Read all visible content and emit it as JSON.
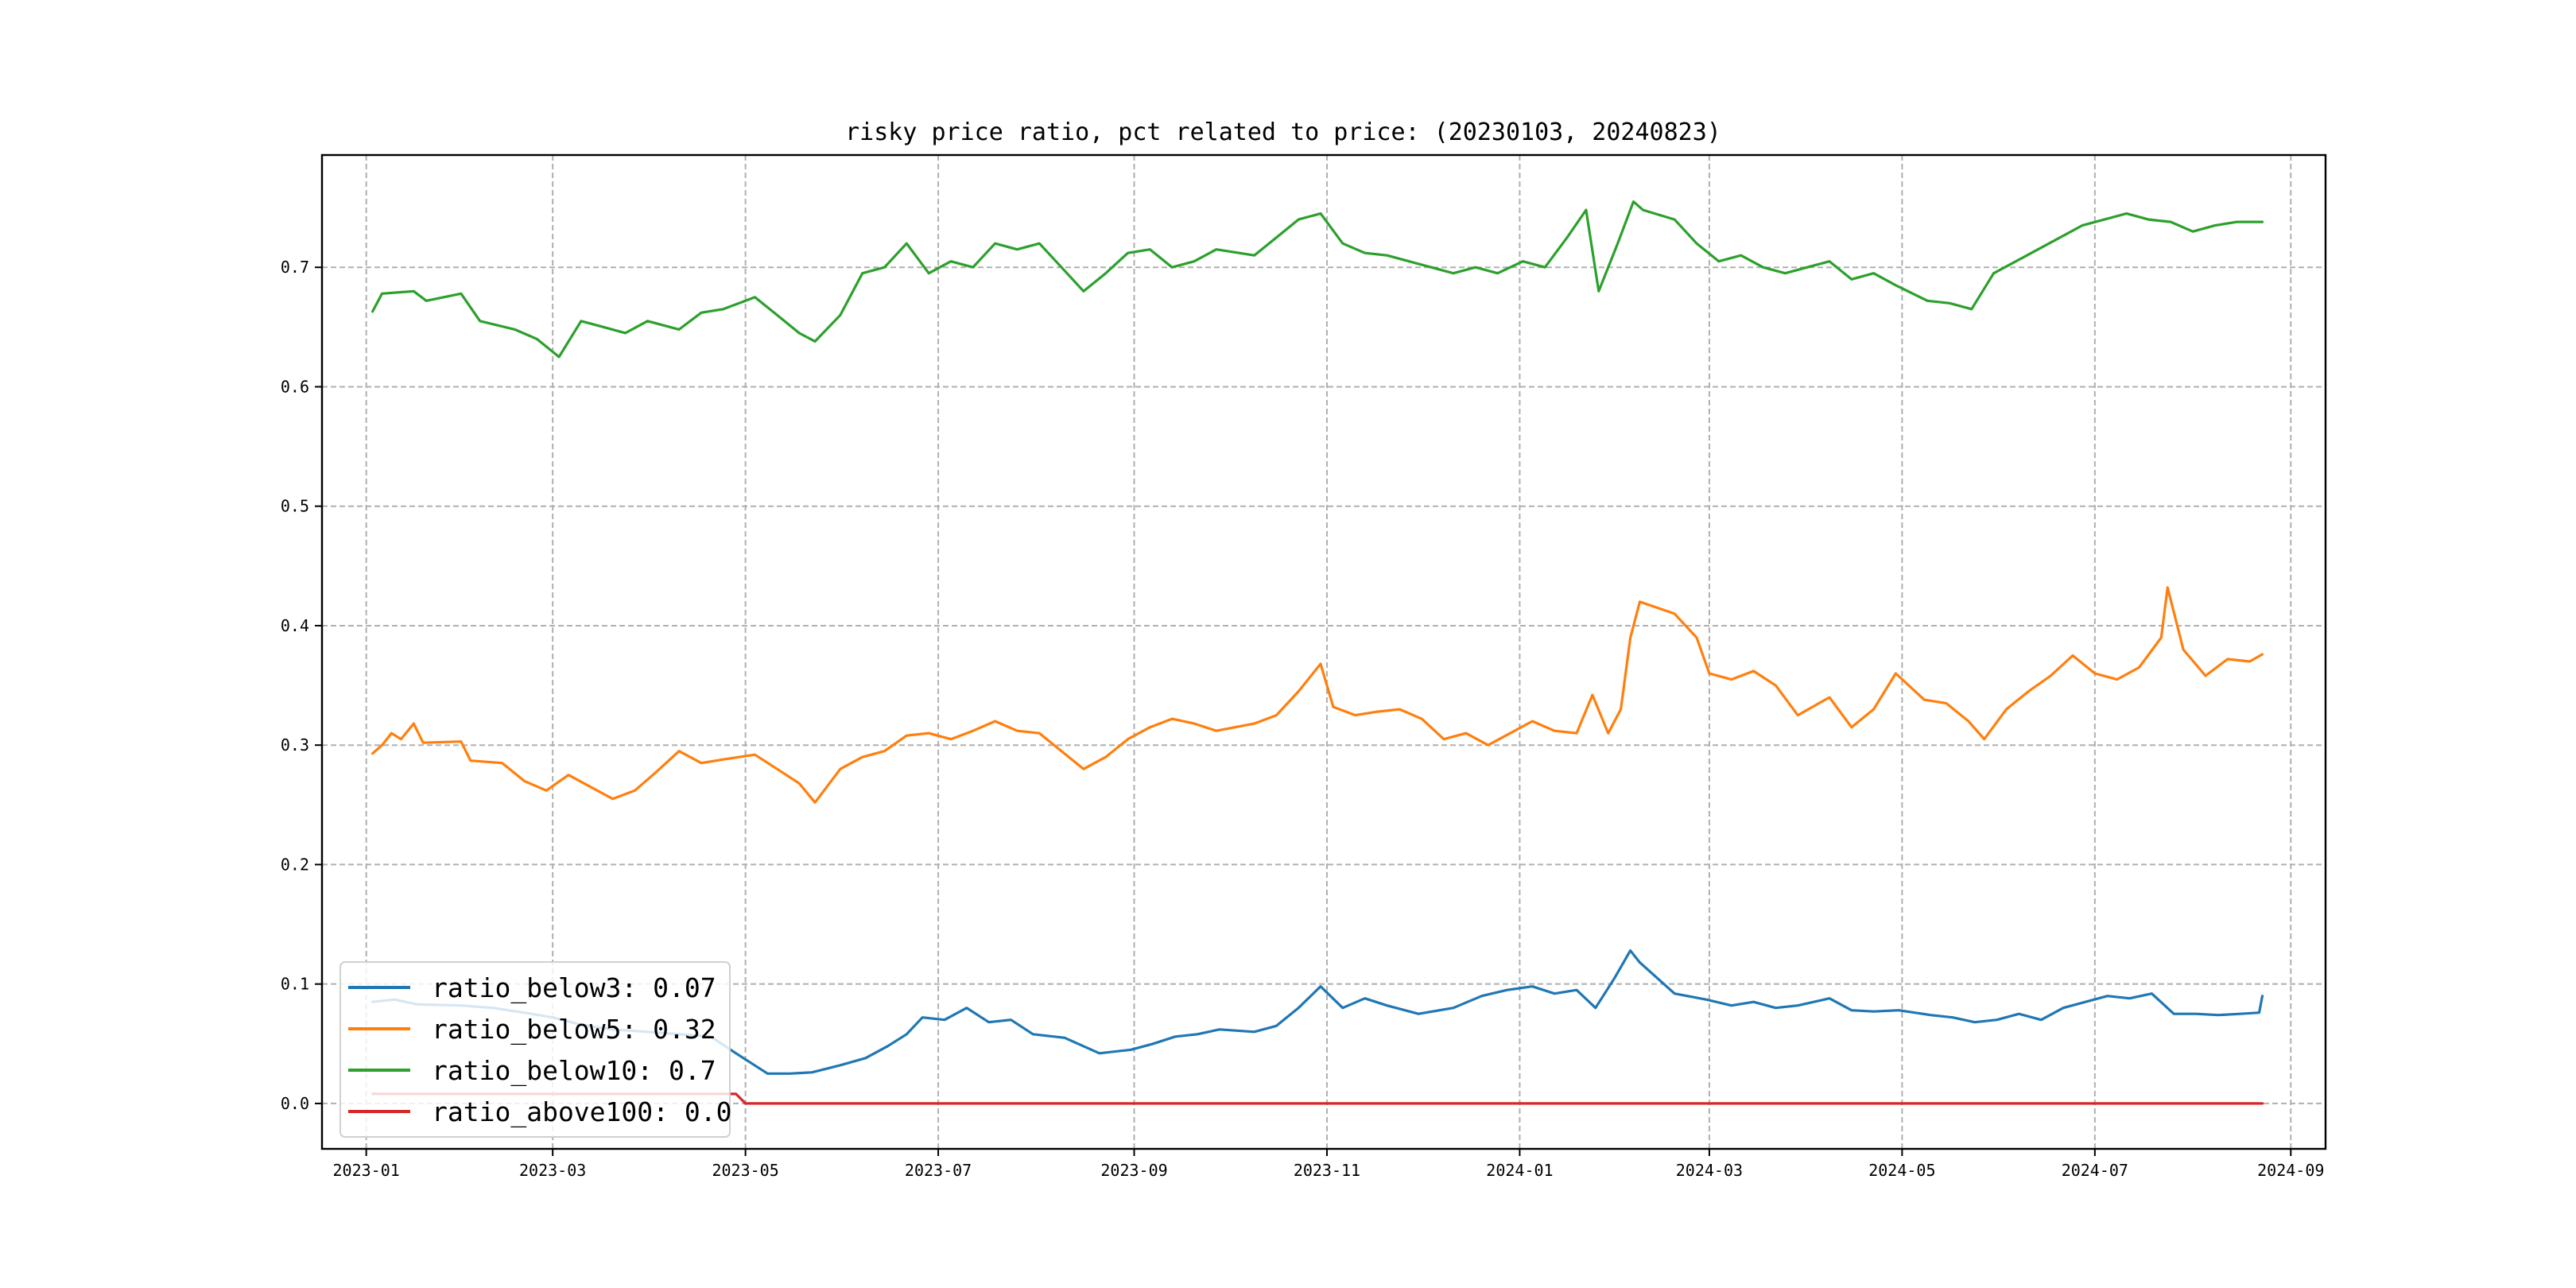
{
  "chart_data": {
    "type": "line",
    "title": "risky price ratio, pct related to price: (20230103, 20240823)",
    "xlabel": "",
    "ylabel": "",
    "x_ticks": [
      "2023-01",
      "2023-03",
      "2023-05",
      "2023-07",
      "2023-09",
      "2023-11",
      "2024-01",
      "2024-03",
      "2024-05",
      "2024-07",
      "2024-09"
    ],
    "y_ticks": [
      "0.0",
      "0.1",
      "0.2",
      "0.3",
      "0.4",
      "0.5",
      "0.6",
      "0.7"
    ],
    "xlim": [
      "2022-12-18",
      "2024-09-12"
    ],
    "ylim": [
      -0.038,
      0.794
    ],
    "grid": true,
    "legend_position": "lower-left",
    "series": [
      {
        "name": "ratio_below3: 0.07",
        "color": "#1f77b4",
        "points": [
          [
            "2023-01-03",
            0.085
          ],
          [
            "2023-01-10",
            0.087
          ],
          [
            "2023-01-17",
            0.083
          ],
          [
            "2023-01-31",
            0.082
          ],
          [
            "2023-02-10",
            0.08
          ],
          [
            "2023-02-20",
            0.076
          ],
          [
            "2023-03-01",
            0.072
          ],
          [
            "2023-03-10",
            0.066
          ],
          [
            "2023-03-20",
            0.062
          ],
          [
            "2023-03-31",
            0.06
          ],
          [
            "2023-04-10",
            0.058
          ],
          [
            "2023-04-20",
            0.056
          ],
          [
            "2023-04-28",
            0.042
          ],
          [
            "2023-05-08",
            0.025
          ],
          [
            "2023-05-15",
            0.025
          ],
          [
            "2023-05-22",
            0.026
          ],
          [
            "2023-05-31",
            0.032
          ],
          [
            "2023-06-08",
            0.038
          ],
          [
            "2023-06-15",
            0.048
          ],
          [
            "2023-06-21",
            0.058
          ],
          [
            "2023-06-26",
            0.072
          ],
          [
            "2023-07-03",
            0.07
          ],
          [
            "2023-07-10",
            0.08
          ],
          [
            "2023-07-17",
            0.068
          ],
          [
            "2023-07-24",
            0.07
          ],
          [
            "2023-07-31",
            0.058
          ],
          [
            "2023-08-10",
            0.055
          ],
          [
            "2023-08-21",
            0.042
          ],
          [
            "2023-08-31",
            0.045
          ],
          [
            "2023-09-07",
            0.05
          ],
          [
            "2023-09-14",
            0.056
          ],
          [
            "2023-09-21",
            0.058
          ],
          [
            "2023-09-28",
            0.062
          ],
          [
            "2023-10-09",
            0.06
          ],
          [
            "2023-10-16",
            0.065
          ],
          [
            "2023-10-23",
            0.08
          ],
          [
            "2023-10-30",
            0.098
          ],
          [
            "2023-11-06",
            0.08
          ],
          [
            "2023-11-13",
            0.088
          ],
          [
            "2023-11-20",
            0.082
          ],
          [
            "2023-11-30",
            0.075
          ],
          [
            "2023-12-11",
            0.08
          ],
          [
            "2023-12-20",
            0.09
          ],
          [
            "2023-12-28",
            0.095
          ],
          [
            "2024-01-05",
            0.098
          ],
          [
            "2024-01-12",
            0.092
          ],
          [
            "2024-01-19",
            0.095
          ],
          [
            "2024-01-25",
            0.08
          ],
          [
            "2024-01-31",
            0.105
          ],
          [
            "2024-02-05",
            0.128
          ],
          [
            "2024-02-08",
            0.118
          ],
          [
            "2024-02-19",
            0.092
          ],
          [
            "2024-02-29",
            0.087
          ],
          [
            "2024-03-08",
            0.082
          ],
          [
            "2024-03-15",
            0.085
          ],
          [
            "2024-03-22",
            0.08
          ],
          [
            "2024-03-29",
            0.082
          ],
          [
            "2024-04-08",
            0.088
          ],
          [
            "2024-04-15",
            0.078
          ],
          [
            "2024-04-22",
            0.077
          ],
          [
            "2024-04-30",
            0.078
          ],
          [
            "2024-05-10",
            0.074
          ],
          [
            "2024-05-17",
            0.072
          ],
          [
            "2024-05-24",
            0.068
          ],
          [
            "2024-05-31",
            0.07
          ],
          [
            "2024-06-07",
            0.075
          ],
          [
            "2024-06-14",
            0.07
          ],
          [
            "2024-06-21",
            0.08
          ],
          [
            "2024-06-28",
            0.085
          ],
          [
            "2024-07-05",
            0.09
          ],
          [
            "2024-07-12",
            0.088
          ],
          [
            "2024-07-19",
            0.092
          ],
          [
            "2024-07-26",
            0.075
          ],
          [
            "2024-08-02",
            0.075
          ],
          [
            "2024-08-09",
            0.074
          ],
          [
            "2024-08-16",
            0.075
          ],
          [
            "2024-08-22",
            0.076
          ],
          [
            "2024-08-23",
            0.09
          ]
        ]
      },
      {
        "name": "ratio_below5: 0.32",
        "color": "#ff7f0e",
        "points": [
          [
            "2023-01-03",
            0.293
          ],
          [
            "2023-01-06",
            0.3
          ],
          [
            "2023-01-09",
            0.31
          ],
          [
            "2023-01-12",
            0.305
          ],
          [
            "2023-01-16",
            0.318
          ],
          [
            "2023-01-19",
            0.302
          ],
          [
            "2023-01-31",
            0.303
          ],
          [
            "2023-02-03",
            0.287
          ],
          [
            "2023-02-13",
            0.285
          ],
          [
            "2023-02-20",
            0.27
          ],
          [
            "2023-02-27",
            0.262
          ],
          [
            "2023-03-06",
            0.275
          ],
          [
            "2023-03-13",
            0.265
          ],
          [
            "2023-03-20",
            0.255
          ],
          [
            "2023-03-27",
            0.262
          ],
          [
            "2023-04-03",
            0.278
          ],
          [
            "2023-04-10",
            0.295
          ],
          [
            "2023-04-17",
            0.285
          ],
          [
            "2023-04-24",
            0.288
          ],
          [
            "2023-05-04",
            0.292
          ],
          [
            "2023-05-11",
            0.28
          ],
          [
            "2023-05-18",
            0.268
          ],
          [
            "2023-05-23",
            0.252
          ],
          [
            "2023-05-31",
            0.28
          ],
          [
            "2023-06-07",
            0.29
          ],
          [
            "2023-06-14",
            0.295
          ],
          [
            "2023-06-21",
            0.308
          ],
          [
            "2023-06-28",
            0.31
          ],
          [
            "2023-07-05",
            0.305
          ],
          [
            "2023-07-12",
            0.312
          ],
          [
            "2023-07-19",
            0.32
          ],
          [
            "2023-07-26",
            0.312
          ],
          [
            "2023-08-02",
            0.31
          ],
          [
            "2023-08-09",
            0.295
          ],
          [
            "2023-08-16",
            0.28
          ],
          [
            "2023-08-23",
            0.29
          ],
          [
            "2023-08-30",
            0.305
          ],
          [
            "2023-09-06",
            0.315
          ],
          [
            "2023-09-13",
            0.322
          ],
          [
            "2023-09-20",
            0.318
          ],
          [
            "2023-09-27",
            0.312
          ],
          [
            "2023-10-09",
            0.318
          ],
          [
            "2023-10-16",
            0.325
          ],
          [
            "2023-10-23",
            0.345
          ],
          [
            "2023-10-30",
            0.368
          ],
          [
            "2023-11-03",
            0.332
          ],
          [
            "2023-11-10",
            0.325
          ],
          [
            "2023-11-17",
            0.328
          ],
          [
            "2023-11-24",
            0.33
          ],
          [
            "2023-12-01",
            0.322
          ],
          [
            "2023-12-08",
            0.305
          ],
          [
            "2023-12-15",
            0.31
          ],
          [
            "2023-12-22",
            0.3
          ],
          [
            "2023-12-29",
            0.31
          ],
          [
            "2024-01-05",
            0.32
          ],
          [
            "2024-01-12",
            0.312
          ],
          [
            "2024-01-19",
            0.31
          ],
          [
            "2024-01-24",
            0.342
          ],
          [
            "2024-01-29",
            0.31
          ],
          [
            "2024-02-02",
            0.33
          ],
          [
            "2024-02-05",
            0.39
          ],
          [
            "2024-02-08",
            0.42
          ],
          [
            "2024-02-19",
            0.41
          ],
          [
            "2024-02-26",
            0.39
          ],
          [
            "2024-03-01",
            0.36
          ],
          [
            "2024-03-08",
            0.355
          ],
          [
            "2024-03-15",
            0.362
          ],
          [
            "2024-03-22",
            0.35
          ],
          [
            "2024-03-29",
            0.325
          ],
          [
            "2024-04-08",
            0.34
          ],
          [
            "2024-04-15",
            0.315
          ],
          [
            "2024-04-22",
            0.33
          ],
          [
            "2024-04-29",
            0.36
          ],
          [
            "2024-05-08",
            0.338
          ],
          [
            "2024-05-15",
            0.335
          ],
          [
            "2024-05-22",
            0.32
          ],
          [
            "2024-05-27",
            0.305
          ],
          [
            "2024-06-03",
            0.33
          ],
          [
            "2024-06-10",
            0.345
          ],
          [
            "2024-06-17",
            0.358
          ],
          [
            "2024-06-24",
            0.375
          ],
          [
            "2024-07-01",
            0.36
          ],
          [
            "2024-07-08",
            0.355
          ],
          [
            "2024-07-15",
            0.365
          ],
          [
            "2024-07-22",
            0.39
          ],
          [
            "2024-07-24",
            0.432
          ],
          [
            "2024-07-29",
            0.38
          ],
          [
            "2024-08-05",
            0.358
          ],
          [
            "2024-08-12",
            0.372
          ],
          [
            "2024-08-19",
            0.37
          ],
          [
            "2024-08-23",
            0.376
          ]
        ]
      },
      {
        "name": "ratio_below10: 0.7",
        "color": "#2ca02c",
        "points": [
          [
            "2023-01-03",
            0.663
          ],
          [
            "2023-01-06",
            0.678
          ],
          [
            "2023-01-16",
            0.68
          ],
          [
            "2023-01-20",
            0.672
          ],
          [
            "2023-01-31",
            0.678
          ],
          [
            "2023-02-06",
            0.655
          ],
          [
            "2023-02-17",
            0.648
          ],
          [
            "2023-02-24",
            0.64
          ],
          [
            "2023-03-03",
            0.625
          ],
          [
            "2023-03-10",
            0.655
          ],
          [
            "2023-03-17",
            0.65
          ],
          [
            "2023-03-24",
            0.645
          ],
          [
            "2023-03-31",
            0.655
          ],
          [
            "2023-04-10",
            0.648
          ],
          [
            "2023-04-17",
            0.662
          ],
          [
            "2023-04-24",
            0.665
          ],
          [
            "2023-05-04",
            0.675
          ],
          [
            "2023-05-11",
            0.66
          ],
          [
            "2023-05-18",
            0.645
          ],
          [
            "2023-05-23",
            0.638
          ],
          [
            "2023-05-31",
            0.66
          ],
          [
            "2023-06-07",
            0.695
          ],
          [
            "2023-06-14",
            0.7
          ],
          [
            "2023-06-21",
            0.72
          ],
          [
            "2023-06-28",
            0.695
          ],
          [
            "2023-07-05",
            0.705
          ],
          [
            "2023-07-12",
            0.7
          ],
          [
            "2023-07-19",
            0.72
          ],
          [
            "2023-07-26",
            0.715
          ],
          [
            "2023-08-02",
            0.72
          ],
          [
            "2023-08-09",
            0.7
          ],
          [
            "2023-08-16",
            0.68
          ],
          [
            "2023-08-23",
            0.695
          ],
          [
            "2023-08-30",
            0.712
          ],
          [
            "2023-09-06",
            0.715
          ],
          [
            "2023-09-13",
            0.7
          ],
          [
            "2023-09-20",
            0.705
          ],
          [
            "2023-09-27",
            0.715
          ],
          [
            "2023-10-09",
            0.71
          ],
          [
            "2023-10-16",
            0.725
          ],
          [
            "2023-10-23",
            0.74
          ],
          [
            "2023-10-30",
            0.745
          ],
          [
            "2023-11-06",
            0.72
          ],
          [
            "2023-11-13",
            0.712
          ],
          [
            "2023-11-20",
            0.71
          ],
          [
            "2023-11-27",
            0.705
          ],
          [
            "2023-12-04",
            0.7
          ],
          [
            "2023-12-11",
            0.695
          ],
          [
            "2023-12-18",
            0.7
          ],
          [
            "2023-12-25",
            0.695
          ],
          [
            "2024-01-02",
            0.705
          ],
          [
            "2024-01-09",
            0.7
          ],
          [
            "2024-01-16",
            0.725
          ],
          [
            "2024-01-22",
            0.748
          ],
          [
            "2024-01-26",
            0.68
          ],
          [
            "2024-02-01",
            0.72
          ],
          [
            "2024-02-06",
            0.755
          ],
          [
            "2024-02-09",
            0.748
          ],
          [
            "2024-02-19",
            0.74
          ],
          [
            "2024-02-26",
            0.72
          ],
          [
            "2024-03-04",
            0.705
          ],
          [
            "2024-03-11",
            0.71
          ],
          [
            "2024-03-18",
            0.7
          ],
          [
            "2024-03-25",
            0.695
          ],
          [
            "2024-04-01",
            0.7
          ],
          [
            "2024-04-08",
            0.705
          ],
          [
            "2024-04-15",
            0.69
          ],
          [
            "2024-04-22",
            0.695
          ],
          [
            "2024-04-29",
            0.685
          ],
          [
            "2024-05-09",
            0.672
          ],
          [
            "2024-05-16",
            0.67
          ],
          [
            "2024-05-23",
            0.665
          ],
          [
            "2024-05-30",
            0.695
          ],
          [
            "2024-06-06",
            0.705
          ],
          [
            "2024-06-13",
            0.715
          ],
          [
            "2024-06-20",
            0.725
          ],
          [
            "2024-06-27",
            0.735
          ],
          [
            "2024-07-04",
            0.74
          ],
          [
            "2024-07-11",
            0.745
          ],
          [
            "2024-07-18",
            0.74
          ],
          [
            "2024-07-25",
            0.738
          ],
          [
            "2024-08-01",
            0.73
          ],
          [
            "2024-08-08",
            0.735
          ],
          [
            "2024-08-15",
            0.738
          ],
          [
            "2024-08-23",
            0.738
          ]
        ]
      },
      {
        "name": "ratio_above100: 0.0",
        "color": "#d62728",
        "points": [
          [
            "2023-01-03",
            0.008
          ],
          [
            "2023-04-28",
            0.008
          ],
          [
            "2023-05-01",
            0.0
          ],
          [
            "2024-08-23",
            0.0
          ]
        ]
      }
    ]
  }
}
